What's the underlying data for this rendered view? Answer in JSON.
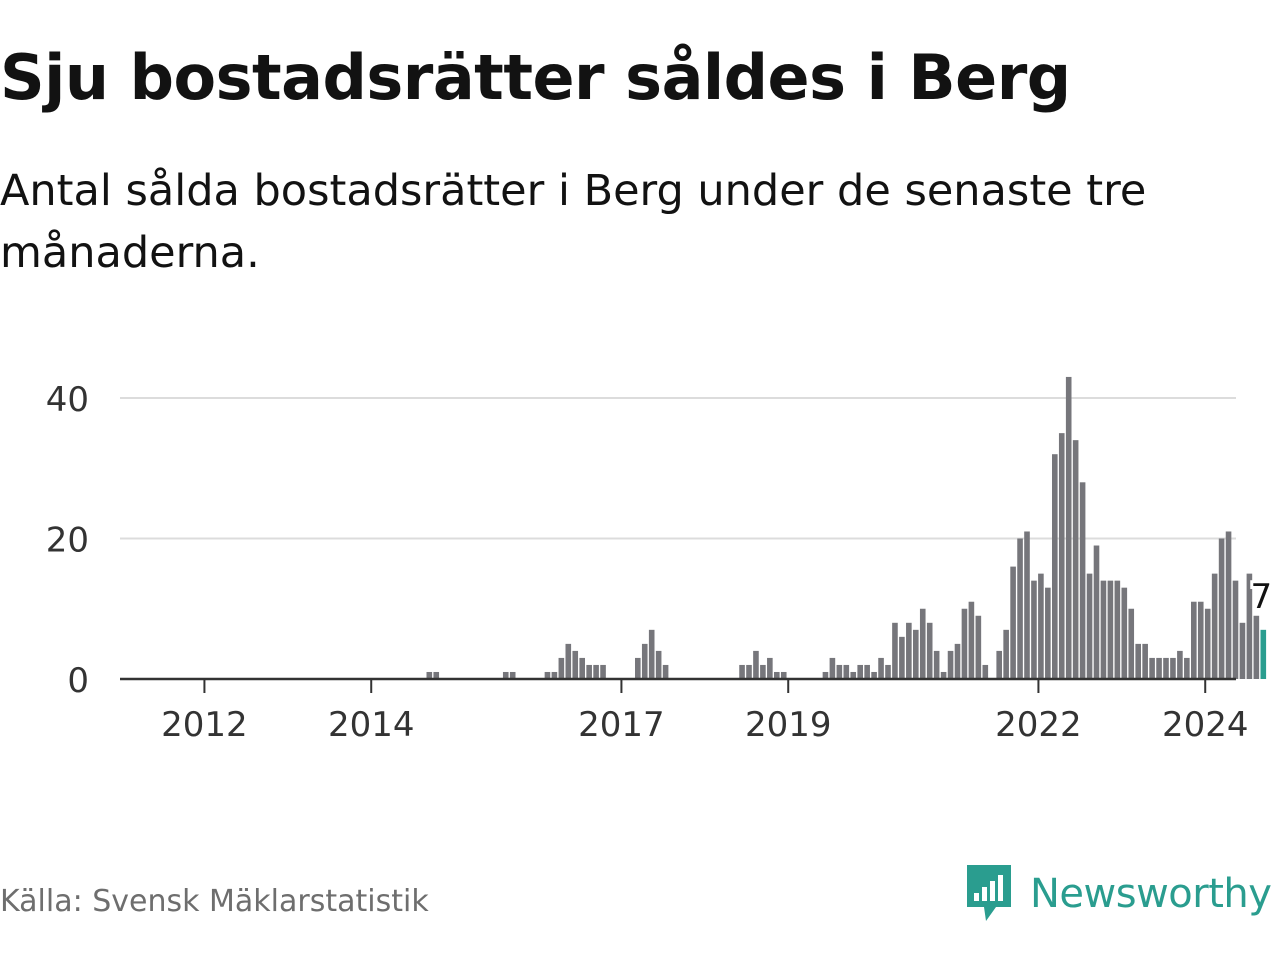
{
  "header": {
    "title": "Sju bostadsrätter såldes i Berg",
    "subtitle": "Antal sålda bostadsrätter i Berg under de senaste tre månaderna."
  },
  "footer": {
    "source": "Källa: Svensk Mäklarstatistik",
    "brand": "Newsworthy"
  },
  "colors": {
    "bar": "#76767b",
    "highlight": "#2a9d8f",
    "grid": "#dcdcdc",
    "axis": "#333333",
    "text": "#333333"
  },
  "chart_data": {
    "type": "bar",
    "title": "Sju bostadsrätter såldes i Berg",
    "xlabel": "",
    "ylabel": "",
    "ylim": [
      0,
      43
    ],
    "grid": true,
    "x_start_year": 2011,
    "x_start_month": 1,
    "x_ticks": [
      2012,
      2014,
      2017,
      2019,
      2022,
      2024
    ],
    "y_ticks": [
      0,
      20,
      40
    ],
    "highlight_label": "7",
    "values": [
      0,
      0,
      0,
      0,
      0,
      0,
      0,
      0,
      0,
      0,
      0,
      0,
      0,
      0,
      0,
      0,
      0,
      0,
      0,
      0,
      0,
      0,
      0,
      0,
      0,
      0,
      0,
      0,
      0,
      0,
      0,
      0,
      0,
      0,
      0,
      0,
      0,
      0,
      0,
      0,
      0,
      0,
      0,
      0,
      1,
      1,
      0,
      0,
      0,
      0,
      0,
      0,
      0,
      0,
      0,
      1,
      1,
      0,
      0,
      0,
      0,
      1,
      1,
      3,
      5,
      4,
      3,
      2,
      2,
      2,
      0,
      0,
      0,
      0,
      3,
      5,
      7,
      4,
      2,
      0,
      0,
      0,
      0,
      0,
      0,
      0,
      0,
      0,
      0,
      2,
      2,
      4,
      2,
      3,
      1,
      1,
      0,
      0,
      0,
      0,
      0,
      1,
      3,
      2,
      2,
      1,
      2,
      2,
      1,
      3,
      2,
      8,
      6,
      8,
      7,
      10,
      8,
      4,
      1,
      4,
      5,
      10,
      11,
      9,
      2,
      0,
      4,
      7,
      16,
      20,
      21,
      14,
      15,
      13,
      32,
      35,
      43,
      34,
      28,
      15,
      19,
      14,
      14,
      14,
      13,
      10,
      5,
      5,
      3,
      3,
      3,
      3,
      4,
      3,
      11,
      11,
      10,
      15,
      20,
      21,
      14,
      8,
      15,
      9,
      7
    ]
  }
}
